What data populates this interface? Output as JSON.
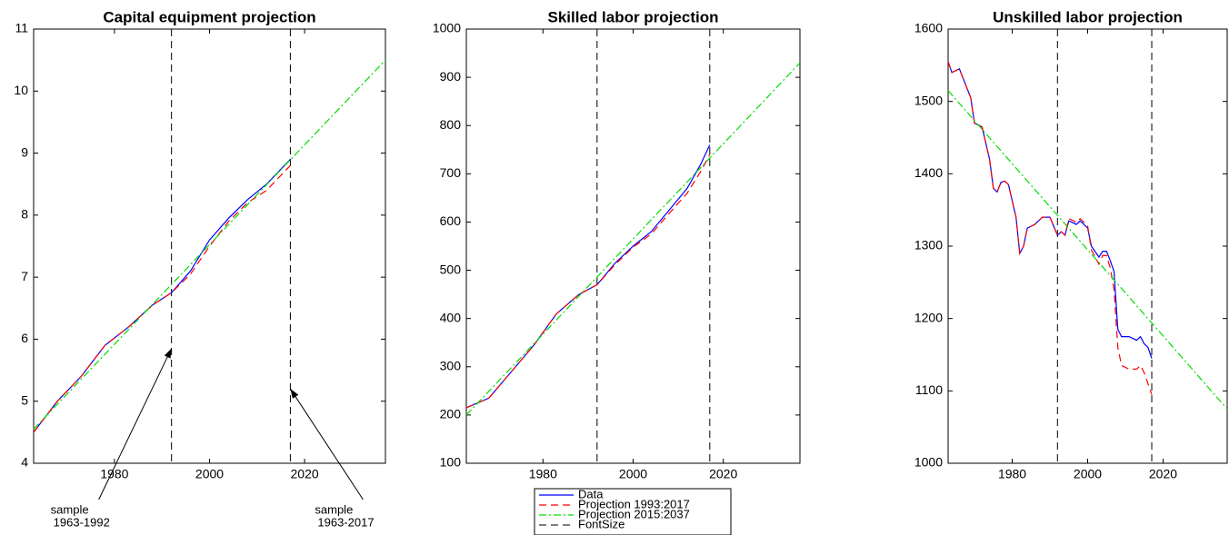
{
  "chart_data": [
    {
      "type": "line",
      "title": "Capital equipment projection",
      "xlim": [
        1963,
        2037
      ],
      "xticks": [
        1980,
        2000,
        2020
      ],
      "ylim": [
        4,
        11
      ],
      "yticks": [
        4,
        5,
        6,
        7,
        8,
        9,
        10,
        11
      ],
      "series": [
        {
          "color": "#0000ff",
          "style": "solid",
          "x": [
            1963,
            1968,
            1973,
            1978,
            1983,
            1988,
            1992,
            1996,
            2000,
            2004,
            2008,
            2012,
            2017
          ],
          "values": [
            4.5,
            5.0,
            5.4,
            5.9,
            6.2,
            6.55,
            6.75,
            7.1,
            7.6,
            7.95,
            8.25,
            8.5,
            8.9
          ]
        },
        {
          "color": "#ff0000",
          "style": "dashed",
          "x": [
            1963,
            1968,
            1973,
            1978,
            1983,
            1988,
            1992,
            1996,
            2000,
            2004,
            2008,
            2012,
            2017
          ],
          "values": [
            4.5,
            5.0,
            5.4,
            5.9,
            6.2,
            6.55,
            6.75,
            7.05,
            7.5,
            7.9,
            8.2,
            8.4,
            8.8
          ]
        },
        {
          "color": "#00dd00",
          "style": "dashdot",
          "x": [
            1963,
            2037
          ],
          "values": [
            4.55,
            10.5
          ]
        }
      ],
      "vlines": [
        1992,
        2017
      ],
      "annotations": [
        {
          "lines": [
            "sample",
            "1963-1992"
          ],
          "x": 1992,
          "y": 5.85
        },
        {
          "lines": [
            "sample",
            "1963-2017"
          ],
          "x": 2017,
          "y": 5.2
        }
      ]
    },
    {
      "type": "line",
      "title": "Skilled labor projection",
      "xlim": [
        1963,
        2037
      ],
      "xticks": [
        1980,
        2000,
        2020
      ],
      "ylim": [
        100,
        1000
      ],
      "yticks": [
        100,
        200,
        300,
        400,
        500,
        600,
        700,
        800,
        900,
        1000
      ],
      "series": [
        {
          "name": "Data",
          "color": "#0000ff",
          "style": "solid",
          "x": [
            1963,
            1968,
            1973,
            1978,
            1983,
            1988,
            1992,
            1996,
            2000,
            2004,
            2008,
            2012,
            2015,
            2017
          ],
          "values": [
            215,
            235,
            290,
            345,
            410,
            450,
            470,
            515,
            550,
            580,
            625,
            670,
            720,
            760
          ]
        },
        {
          "name": "Projection 1993:2017",
          "color": "#ff0000",
          "style": "dashed",
          "x": [
            1963,
            1968,
            1973,
            1978,
            1983,
            1988,
            1992,
            1996,
            2000,
            2004,
            2008,
            2012,
            2015,
            2017
          ],
          "values": [
            215,
            235,
            290,
            345,
            410,
            450,
            470,
            512,
            548,
            575,
            618,
            660,
            705,
            740
          ]
        },
        {
          "name": "Projection 2015:2037",
          "color": "#00dd00",
          "style": "dashdot",
          "x": [
            1963,
            2037
          ],
          "values": [
            200,
            930
          ]
        }
      ],
      "vlines": [
        1992,
        2017
      ],
      "vlines_name": "FontSize",
      "legend": "south-outside"
    },
    {
      "type": "line",
      "title": "Unskilled labor projection",
      "xlim": [
        1963,
        2037
      ],
      "xticks": [
        1980,
        2000,
        2020
      ],
      "ylim": [
        1000,
        1600
      ],
      "yticks": [
        1000,
        1100,
        1200,
        1300,
        1400,
        1500,
        1600
      ],
      "series": [
        {
          "color": "#0000ff",
          "style": "solid",
          "x": [
            1963,
            1964,
            1966,
            1969,
            1970,
            1972,
            1974,
            1975,
            1976,
            1977,
            1978,
            1979,
            1981,
            1982,
            1983,
            1984,
            1986,
            1988,
            1990,
            1992,
            1993,
            1994,
            1995,
            1997,
            1998,
            2000,
            2001,
            2003,
            2004,
            2005,
            2006,
            2007,
            2008,
            2009,
            2011,
            2013,
            2014,
            2015,
            2016,
            2017
          ],
          "values": [
            1555,
            1540,
            1545,
            1505,
            1470,
            1465,
            1420,
            1380,
            1375,
            1388,
            1390,
            1385,
            1340,
            1290,
            1300,
            1325,
            1330,
            1340,
            1340,
            1315,
            1320,
            1315,
            1335,
            1330,
            1335,
            1325,
            1300,
            1285,
            1293,
            1293,
            1280,
            1265,
            1185,
            1175,
            1175,
            1170,
            1175,
            1165,
            1160,
            1145
          ]
        },
        {
          "color": "#ff0000",
          "style": "dashed",
          "x": [
            1963,
            1964,
            1966,
            1969,
            1970,
            1972,
            1974,
            1975,
            1976,
            1977,
            1978,
            1979,
            1981,
            1982,
            1983,
            1984,
            1986,
            1988,
            1990,
            1992,
            1993,
            1994,
            1995,
            1997,
            1998,
            2000,
            2001,
            2003,
            2004,
            2005,
            2006,
            2007,
            2008,
            2009,
            2011,
            2013,
            2014,
            2015,
            2016,
            2017
          ],
          "values": [
            1555,
            1540,
            1545,
            1505,
            1470,
            1465,
            1420,
            1380,
            1375,
            1388,
            1390,
            1385,
            1340,
            1290,
            1300,
            1325,
            1330,
            1340,
            1340,
            1315,
            1320,
            1315,
            1338,
            1333,
            1338,
            1328,
            1295,
            1275,
            1287,
            1287,
            1270,
            1240,
            1160,
            1135,
            1130,
            1130,
            1135,
            1125,
            1110,
            1095
          ]
        },
        {
          "color": "#00dd00",
          "style": "dashdot",
          "x": [
            1963,
            2037
          ],
          "values": [
            1515,
            1075
          ]
        }
      ],
      "vlines": [
        1992,
        2017
      ]
    }
  ]
}
